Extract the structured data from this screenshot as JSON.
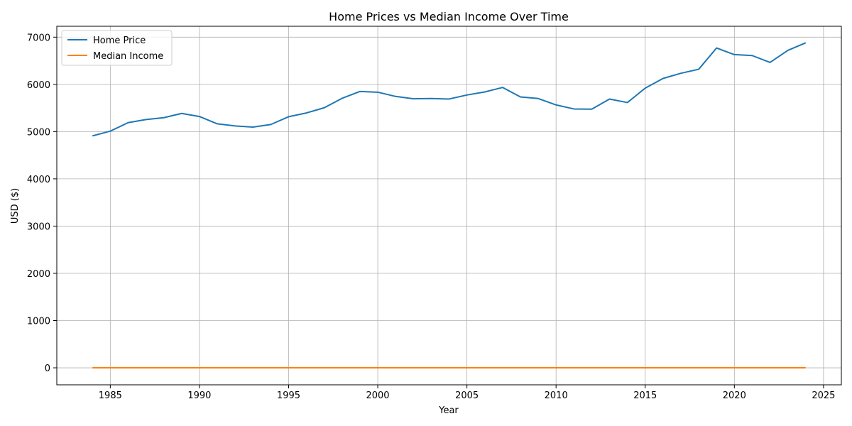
{
  "chart_data": {
    "type": "line",
    "title": "Home Prices vs Median Income Over Time",
    "xlabel": "Year",
    "ylabel": "USD ($)",
    "xlim": [
      1982,
      2026
    ],
    "ylim": [
      -360,
      7230
    ],
    "xticks": [
      1985,
      1990,
      1995,
      2000,
      2005,
      2010,
      2015,
      2020,
      2025
    ],
    "yticks": [
      0,
      1000,
      2000,
      3000,
      4000,
      5000,
      6000,
      7000
    ],
    "grid": true,
    "legend_position": "top-left",
    "x": [
      1984,
      1985,
      1986,
      1987,
      1988,
      1989,
      1990,
      1991,
      1992,
      1993,
      1994,
      1995,
      1996,
      1997,
      1998,
      1999,
      2000,
      2001,
      2002,
      2003,
      2004,
      2005,
      2006,
      2007,
      2008,
      2009,
      2010,
      2011,
      2012,
      2013,
      2014,
      2015,
      2016,
      2017,
      2018,
      2019,
      2020,
      2021,
      2022,
      2023,
      2024
    ],
    "series": [
      {
        "name": "Home Price",
        "color": "#1f77b4",
        "values": [
          4910,
          5010,
          5190,
          5255,
          5295,
          5385,
          5320,
          5165,
          5120,
          5095,
          5150,
          5315,
          5395,
          5505,
          5705,
          5850,
          5835,
          5745,
          5695,
          5700,
          5690,
          5775,
          5840,
          5935,
          5735,
          5700,
          5565,
          5480,
          5475,
          5690,
          5615,
          5920,
          6125,
          6235,
          6320,
          6770,
          6630,
          6610,
          6465,
          6720,
          6880
        ]
      },
      {
        "name": "Median Income",
        "color": "#ff7f0e",
        "values": [
          0.9,
          0.9,
          1.0,
          1.0,
          1.0,
          1.0,
          1.0,
          1.0,
          1.0,
          1.0,
          1.0,
          1.0,
          1.1,
          1.1,
          1.1,
          1.1,
          1.1,
          1.1,
          1.1,
          1.1,
          1.1,
          1.1,
          1.2,
          1.2,
          1.2,
          1.2,
          1.2,
          1.2,
          1.2,
          1.2,
          1.2,
          1.2,
          1.3,
          1.3,
          1.3,
          1.3,
          1.3,
          1.3,
          1.3,
          1.3,
          1.3
        ]
      }
    ]
  }
}
